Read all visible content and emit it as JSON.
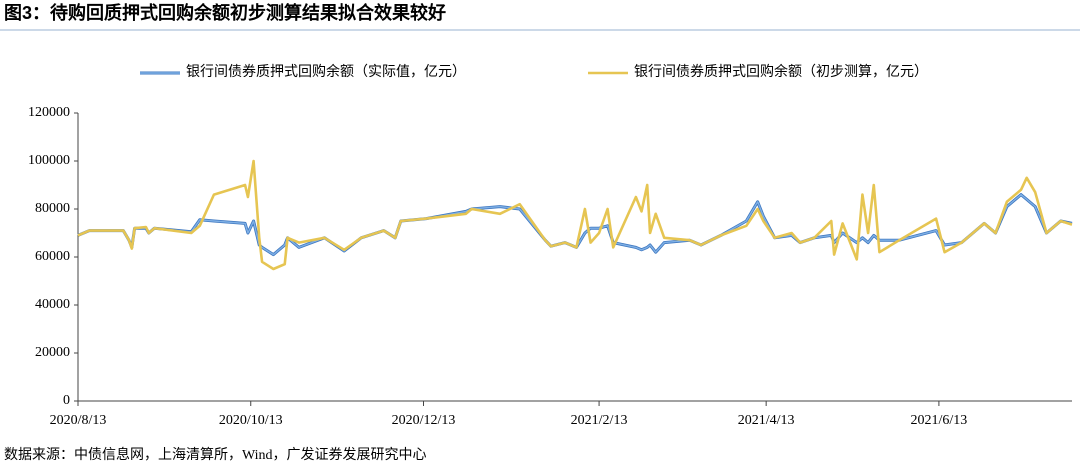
{
  "chart_data": {
    "type": "line",
    "title": "图3：待购回质押式回购余额初步测算结果拟合效果较好",
    "source": "数据来源：中债信息网，上海清算所，Wind，广发证券发展研究中心",
    "x": [
      "2020/8/13",
      "2020/8/17",
      "2020/8/29",
      "2020/8/31",
      "2020/9/1",
      "2020/9/2",
      "2020/9/6",
      "2020/9/7",
      "2020/9/9",
      "2020/9/22",
      "2020/9/25",
      "2020/9/30",
      "2020/10/11",
      "2020/10/12",
      "2020/10/14",
      "2020/10/16",
      "2020/10/17",
      "2020/10/21",
      "2020/10/25",
      "2020/10/26",
      "2020/10/30",
      "2020/11/8",
      "2020/11/15",
      "2020/11/21",
      "2020/11/29",
      "2020/12/3",
      "2020/12/5",
      "2020/12/14",
      "2020/12/28",
      "2020/12/30",
      "2021/1/9",
      "2021/1/16",
      "2021/1/25",
      "2021/1/27",
      "2021/2/1",
      "2021/2/5",
      "2021/2/8",
      "2021/2/10",
      "2021/2/13",
      "2021/2/16",
      "2021/2/18",
      "2021/2/26",
      "2021/2/28",
      "2021/3/2",
      "2021/3/3",
      "2021/3/5",
      "2021/3/8",
      "2021/3/17",
      "2021/3/21",
      "2021/3/28",
      "2021/4/6",
      "2021/4/10",
      "2021/4/12",
      "2021/4/16",
      "2021/4/22",
      "2021/4/25",
      "2021/4/30",
      "2021/5/6",
      "2021/5/7",
      "2021/5/10",
      "2021/5/15",
      "2021/5/17",
      "2021/5/19",
      "2021/5/21",
      "2021/5/23",
      "2021/5/30",
      "2021/6/12",
      "2021/6/15",
      "2021/6/21",
      "2021/6/29",
      "2021/7/3",
      "2021/7/7",
      "2021/7/12",
      "2021/7/14",
      "2021/7/17",
      "2021/7/21",
      "2021/7/26",
      "2021/7/30"
    ],
    "series": [
      {
        "name": "银行间债券质押式回购余额（实际值，亿元）",
        "color": "#7fb0e6",
        "outline": "#3f78c0",
        "values": [
          69000,
          71000,
          71000,
          67000,
          64000,
          72000,
          72000,
          70000,
          72000,
          70500,
          75500,
          75000,
          74000,
          70000,
          75000,
          65000,
          64000,
          61000,
          65000,
          68000,
          64000,
          68000,
          62500,
          68000,
          71000,
          68000,
          75000,
          76000,
          79000,
          80000,
          81000,
          80000,
          67000,
          64500,
          66000,
          64000,
          70000,
          72000,
          72000,
          73000,
          66000,
          64000,
          63000,
          64000,
          65000,
          62000,
          66000,
          67000,
          65000,
          69000,
          75000,
          83000,
          77000,
          68000,
          69000,
          66000,
          68000,
          69000,
          66000,
          70000,
          66000,
          68000,
          66000,
          69000,
          67000,
          67000,
          71000,
          65000,
          66000,
          74000,
          70000,
          81000,
          86000,
          84000,
          81000,
          70000,
          75000,
          74000
        ]
      },
      {
        "name": "银行间债券质押式回购余额（初步测算，亿元）",
        "color": "#e6c552",
        "values": [
          69000,
          71000,
          71000,
          67000,
          63500,
          72000,
          72500,
          70000,
          72000,
          70000,
          73000,
          86000,
          90000,
          85000,
          100000,
          68000,
          58000,
          55000,
          57000,
          68000,
          66000,
          68000,
          63000,
          68000,
          71000,
          68000,
          75000,
          76000,
          78000,
          80000,
          78000,
          82000,
          67000,
          64500,
          66000,
          64000,
          80000,
          66000,
          70000,
          80000,
          64000,
          85000,
          79000,
          90000,
          70000,
          78000,
          68000,
          67000,
          65000,
          69000,
          73000,
          80000,
          75000,
          68000,
          70000,
          66000,
          68000,
          75000,
          61000,
          74000,
          59000,
          86000,
          70000,
          90000,
          62000,
          67000,
          76000,
          62000,
          66000,
          74000,
          70000,
          83000,
          88000,
          93000,
          87000,
          70000,
          75000,
          73500
        ]
      }
    ],
    "xlim": [
      "2020/8/13",
      "2021/7/30"
    ],
    "xticks": [
      "2020/8/13",
      "2020/10/13",
      "2020/12/13",
      "2021/2/13",
      "2021/4/13",
      "2021/6/13"
    ],
    "ylim": [
      0,
      120000
    ],
    "yticks": [
      0,
      20000,
      40000,
      60000,
      80000,
      100000,
      120000
    ],
    "grid": false,
    "legend": "top"
  }
}
